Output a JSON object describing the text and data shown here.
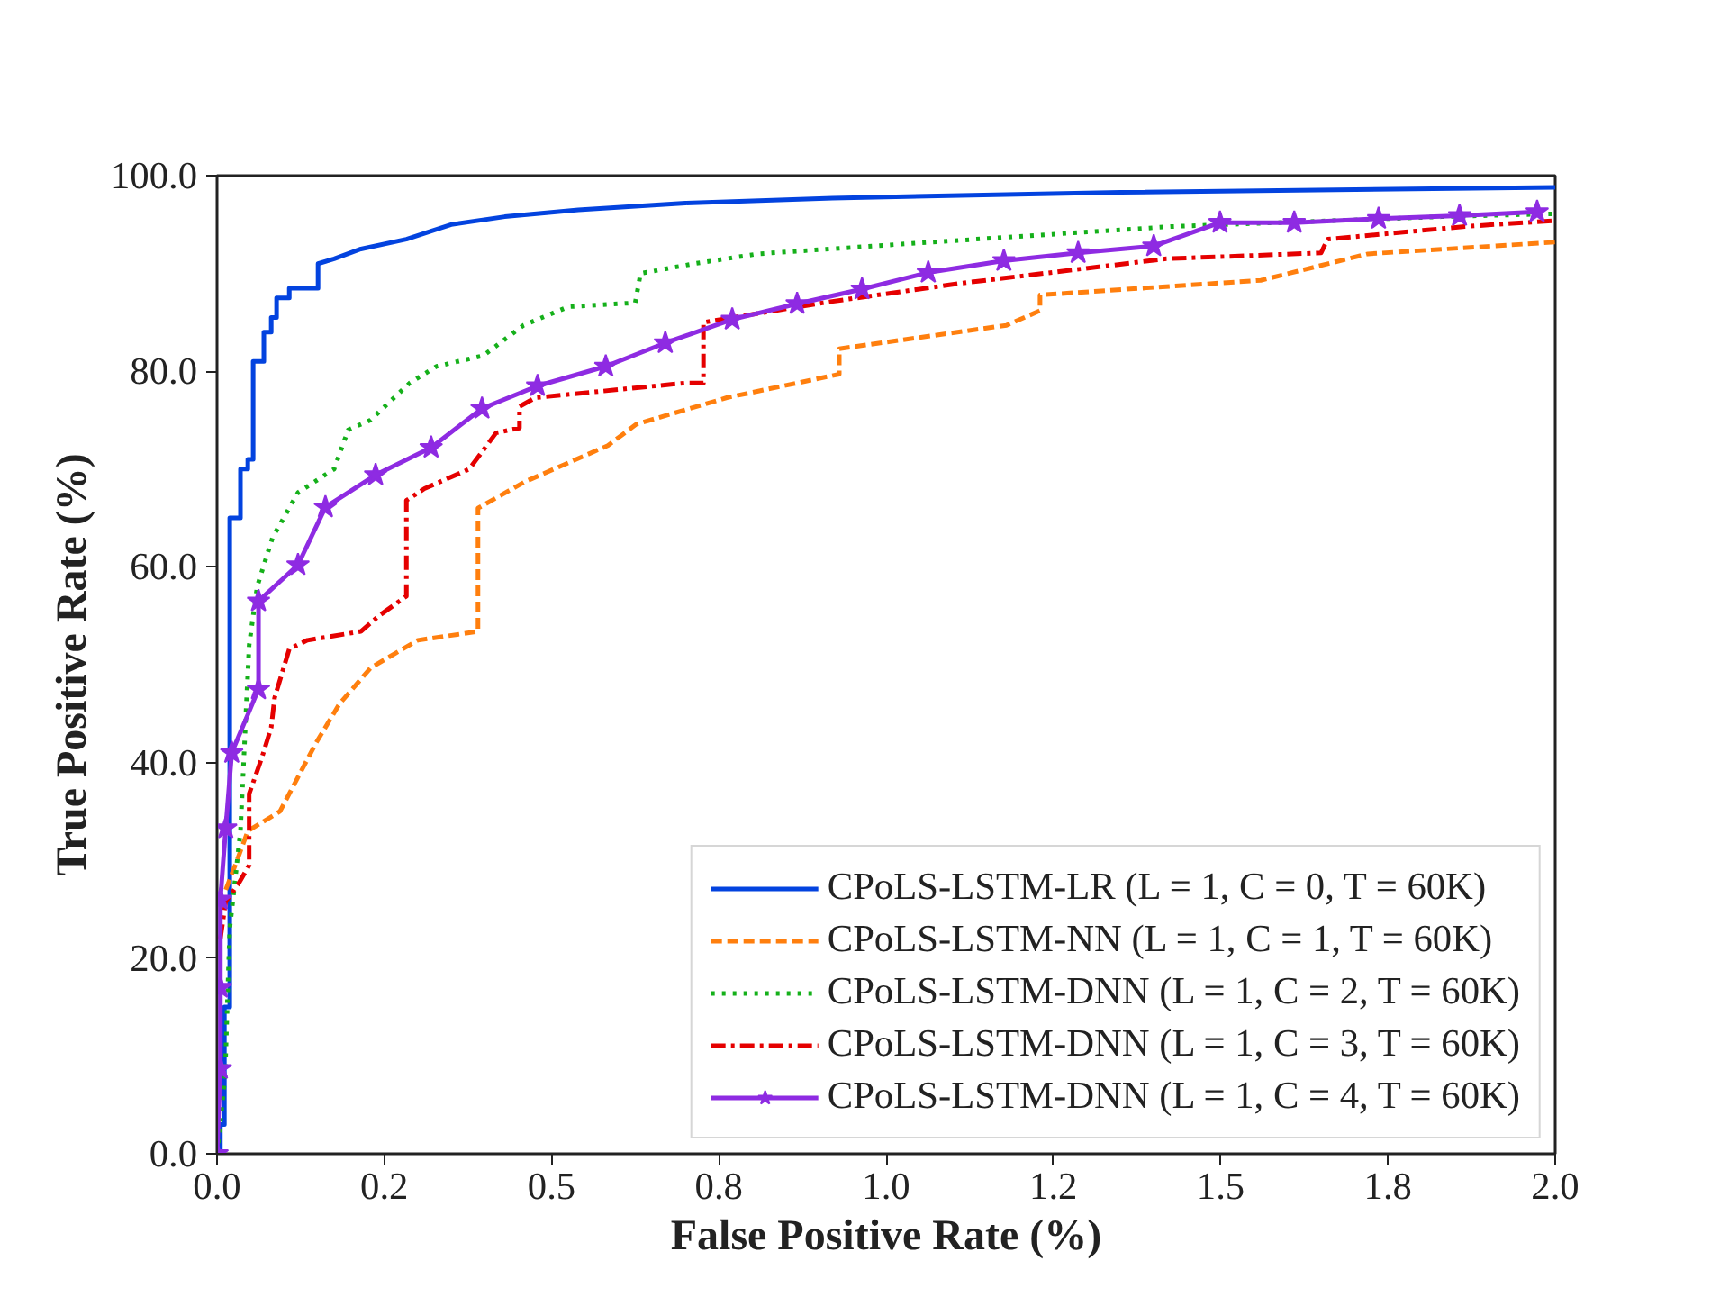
{
  "chart_data": {
    "type": "line",
    "xlabel": "False Positive Rate (%)",
    "ylabel": "True Positive Rate (%)",
    "xlim": [
      0,
      2
    ],
    "ylim": [
      0,
      100
    ],
    "xticks": [
      {
        "value": 0,
        "label": "0.0"
      },
      {
        "value": 0.25,
        "label": "0.2"
      },
      {
        "value": 0.5,
        "label": "0.5"
      },
      {
        "value": 0.75,
        "label": "0.8"
      },
      {
        "value": 1.0,
        "label": "1.0"
      },
      {
        "value": 1.25,
        "label": "1.2"
      },
      {
        "value": 1.5,
        "label": "1.5"
      },
      {
        "value": 1.75,
        "label": "1.8"
      },
      {
        "value": 2.0,
        "label": "2.0"
      }
    ],
    "yticks": [
      {
        "value": 0,
        "label": "0.0"
      },
      {
        "value": 20,
        "label": "20.0"
      },
      {
        "value": 40,
        "label": "40.0"
      },
      {
        "value": 60,
        "label": "60.0"
      },
      {
        "value": 80,
        "label": "80.0"
      },
      {
        "value": 100,
        "label": "100.0"
      }
    ],
    "grid": false,
    "legend": "bottom right",
    "series": [
      {
        "name": "CPoLS-LSTM-LR (L = 1, C = 0, T = 60K)",
        "color": "#0343df",
        "line_style": "solid",
        "marker": "none",
        "x": [
          0,
          0.005,
          0.005,
          0.011,
          0.011,
          0.019,
          0.019,
          0.035,
          0.035,
          0.046,
          0.046,
          0.054,
          0.054,
          0.07,
          0.07,
          0.081,
          0.081,
          0.089,
          0.089,
          0.108,
          0.108,
          0.151,
          0.151,
          0.175,
          0.215,
          0.283,
          0.35,
          0.43,
          0.54,
          0.7,
          0.92,
          1.35,
          2.0
        ],
        "values": [
          0,
          0,
          3,
          3,
          15,
          15,
          65,
          65,
          70,
          70,
          71,
          71,
          81,
          81,
          84,
          84,
          85.5,
          85.5,
          87.5,
          87.5,
          88.5,
          88.5,
          91,
          91.5,
          92.5,
          93.5,
          95,
          95.8,
          96.5,
          97.2,
          97.7,
          98.3,
          98.8
        ]
      },
      {
        "name": "CPoLS-LSTM-NN (L = 1, C = 1, T = 60K)",
        "color": "#ff7f0e",
        "line_style": "dashed",
        "marker": "none",
        "x": [
          0.013,
          0.03,
          0.046,
          0.094,
          0.148,
          0.183,
          0.23,
          0.3,
          0.39,
          0.39,
          0.46,
          0.584,
          0.627,
          0.762,
          0.93,
          0.93,
          1.18,
          1.23,
          1.23,
          1.56,
          1.72,
          2.0
        ],
        "values": [
          27,
          30,
          33,
          35,
          42,
          46,
          49.7,
          52.5,
          53.4,
          66,
          68.7,
          72.4,
          74.6,
          77.3,
          79.7,
          82.3,
          84.7,
          86.2,
          87.8,
          89.3,
          92,
          93.2
        ]
      },
      {
        "name": "CPoLS-LSTM-DNN (L = 1, C = 2, T = 60K)",
        "color": "#15b01a",
        "line_style": "dotted",
        "marker": "none",
        "x": [
          0,
          0.012,
          0.019,
          0.035,
          0.048,
          0.06,
          0.083,
          0.121,
          0.175,
          0.196,
          0.229,
          0.288,
          0.328,
          0.398,
          0.458,
          0.525,
          0.625,
          0.633,
          0.713,
          0.808,
          1.023,
          1.427,
          1.83,
          2.0
        ],
        "values": [
          0,
          8,
          23,
          33,
          52,
          58,
          63,
          67.6,
          70,
          74,
          75,
          78.8,
          80.5,
          81.6,
          84.7,
          86.6,
          87,
          90,
          91,
          92,
          93,
          94.8,
          95.8,
          96.1
        ]
      },
      {
        "name": "CPoLS-LSTM-DNN (L = 1, C = 3, T = 60K)",
        "color": "#e50000",
        "line_style": "dashdot",
        "marker": "none",
        "x": [
          0.005,
          0.013,
          0.032,
          0.048,
          0.048,
          0.067,
          0.081,
          0.086,
          0.108,
          0.135,
          0.215,
          0.242,
          0.283,
          0.283,
          0.31,
          0.377,
          0.417,
          0.452,
          0.452,
          0.476,
          0.7,
          0.727,
          0.727,
          0.915,
          1.112,
          1.419,
          1.65,
          1.66,
          1.865,
          2.0
        ],
        "values": [
          22,
          25.8,
          27.6,
          29.5,
          36.8,
          40.5,
          43.6,
          46.6,
          51.6,
          52.5,
          53.4,
          55,
          57,
          66.8,
          68,
          70,
          73.7,
          74.2,
          76.4,
          77.3,
          78.8,
          78.8,
          85,
          87.1,
          89,
          91.5,
          92.1,
          93.5,
          94.8,
          95.4
        ]
      },
      {
        "name": "CPoLS-LSTM-DNN (L = 1, C = 4, T = 60K)",
        "color": "#8e2be2",
        "line_style": "solid",
        "marker": "star",
        "x": [
          0,
          0.005,
          0.005,
          0.005,
          0.013,
          0.022,
          0.062,
          0.062,
          0.121,
          0.162,
          0.237,
          0.32,
          0.396,
          0.479,
          0.581,
          0.67,
          0.77,
          0.867,
          0.964,
          1.063,
          1.176,
          1.287,
          1.4,
          1.499,
          1.61,
          1.736,
          1.857,
          1.973
        ],
        "values": [
          0,
          8.7,
          17,
          26,
          33.3,
          41,
          47.5,
          56.5,
          60.2,
          66.1,
          69.4,
          72.2,
          76.2,
          78.5,
          80.5,
          82.9,
          85.3,
          86.9,
          88.4,
          90.1,
          91.3,
          92.1,
          92.8,
          95.2,
          95.2,
          95.6,
          95.9,
          96.3
        ]
      }
    ]
  }
}
